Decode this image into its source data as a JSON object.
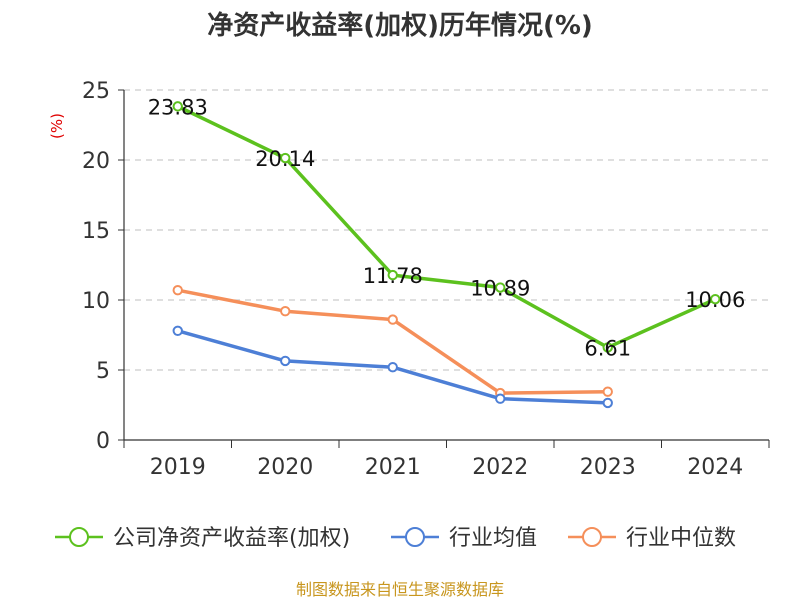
{
  "chart_data": {
    "type": "line",
    "title": "净资产收益率(加权)历年情况(%)",
    "ylabel": "(%)",
    "xlabel": "",
    "categories": [
      "2019",
      "2020",
      "2021",
      "2022",
      "2023",
      "2024"
    ],
    "ylim": [
      0,
      25
    ],
    "yticks": [
      0,
      5,
      10,
      15,
      20,
      25
    ],
    "grid": true,
    "legend_position": "bottom",
    "series": [
      {
        "name": "公司净资产收益率(加权)",
        "color": "#5cc11e",
        "values": [
          23.83,
          20.14,
          11.78,
          10.89,
          6.61,
          10.06
        ],
        "labels": [
          "23.83",
          "20.14",
          "11.78",
          "10.89",
          "6.61",
          "10.06"
        ]
      },
      {
        "name": "行业均值",
        "color": "#4d7fd6",
        "values": [
          7.8,
          5.65,
          5.2,
          2.95,
          2.65,
          null
        ],
        "labels": []
      },
      {
        "name": "行业中位数",
        "color": "#f58f5a",
        "values": [
          10.7,
          9.2,
          8.6,
          3.35,
          3.45,
          null
        ],
        "labels": []
      }
    ],
    "source": "制图数据来自恒生聚源数据库"
  }
}
